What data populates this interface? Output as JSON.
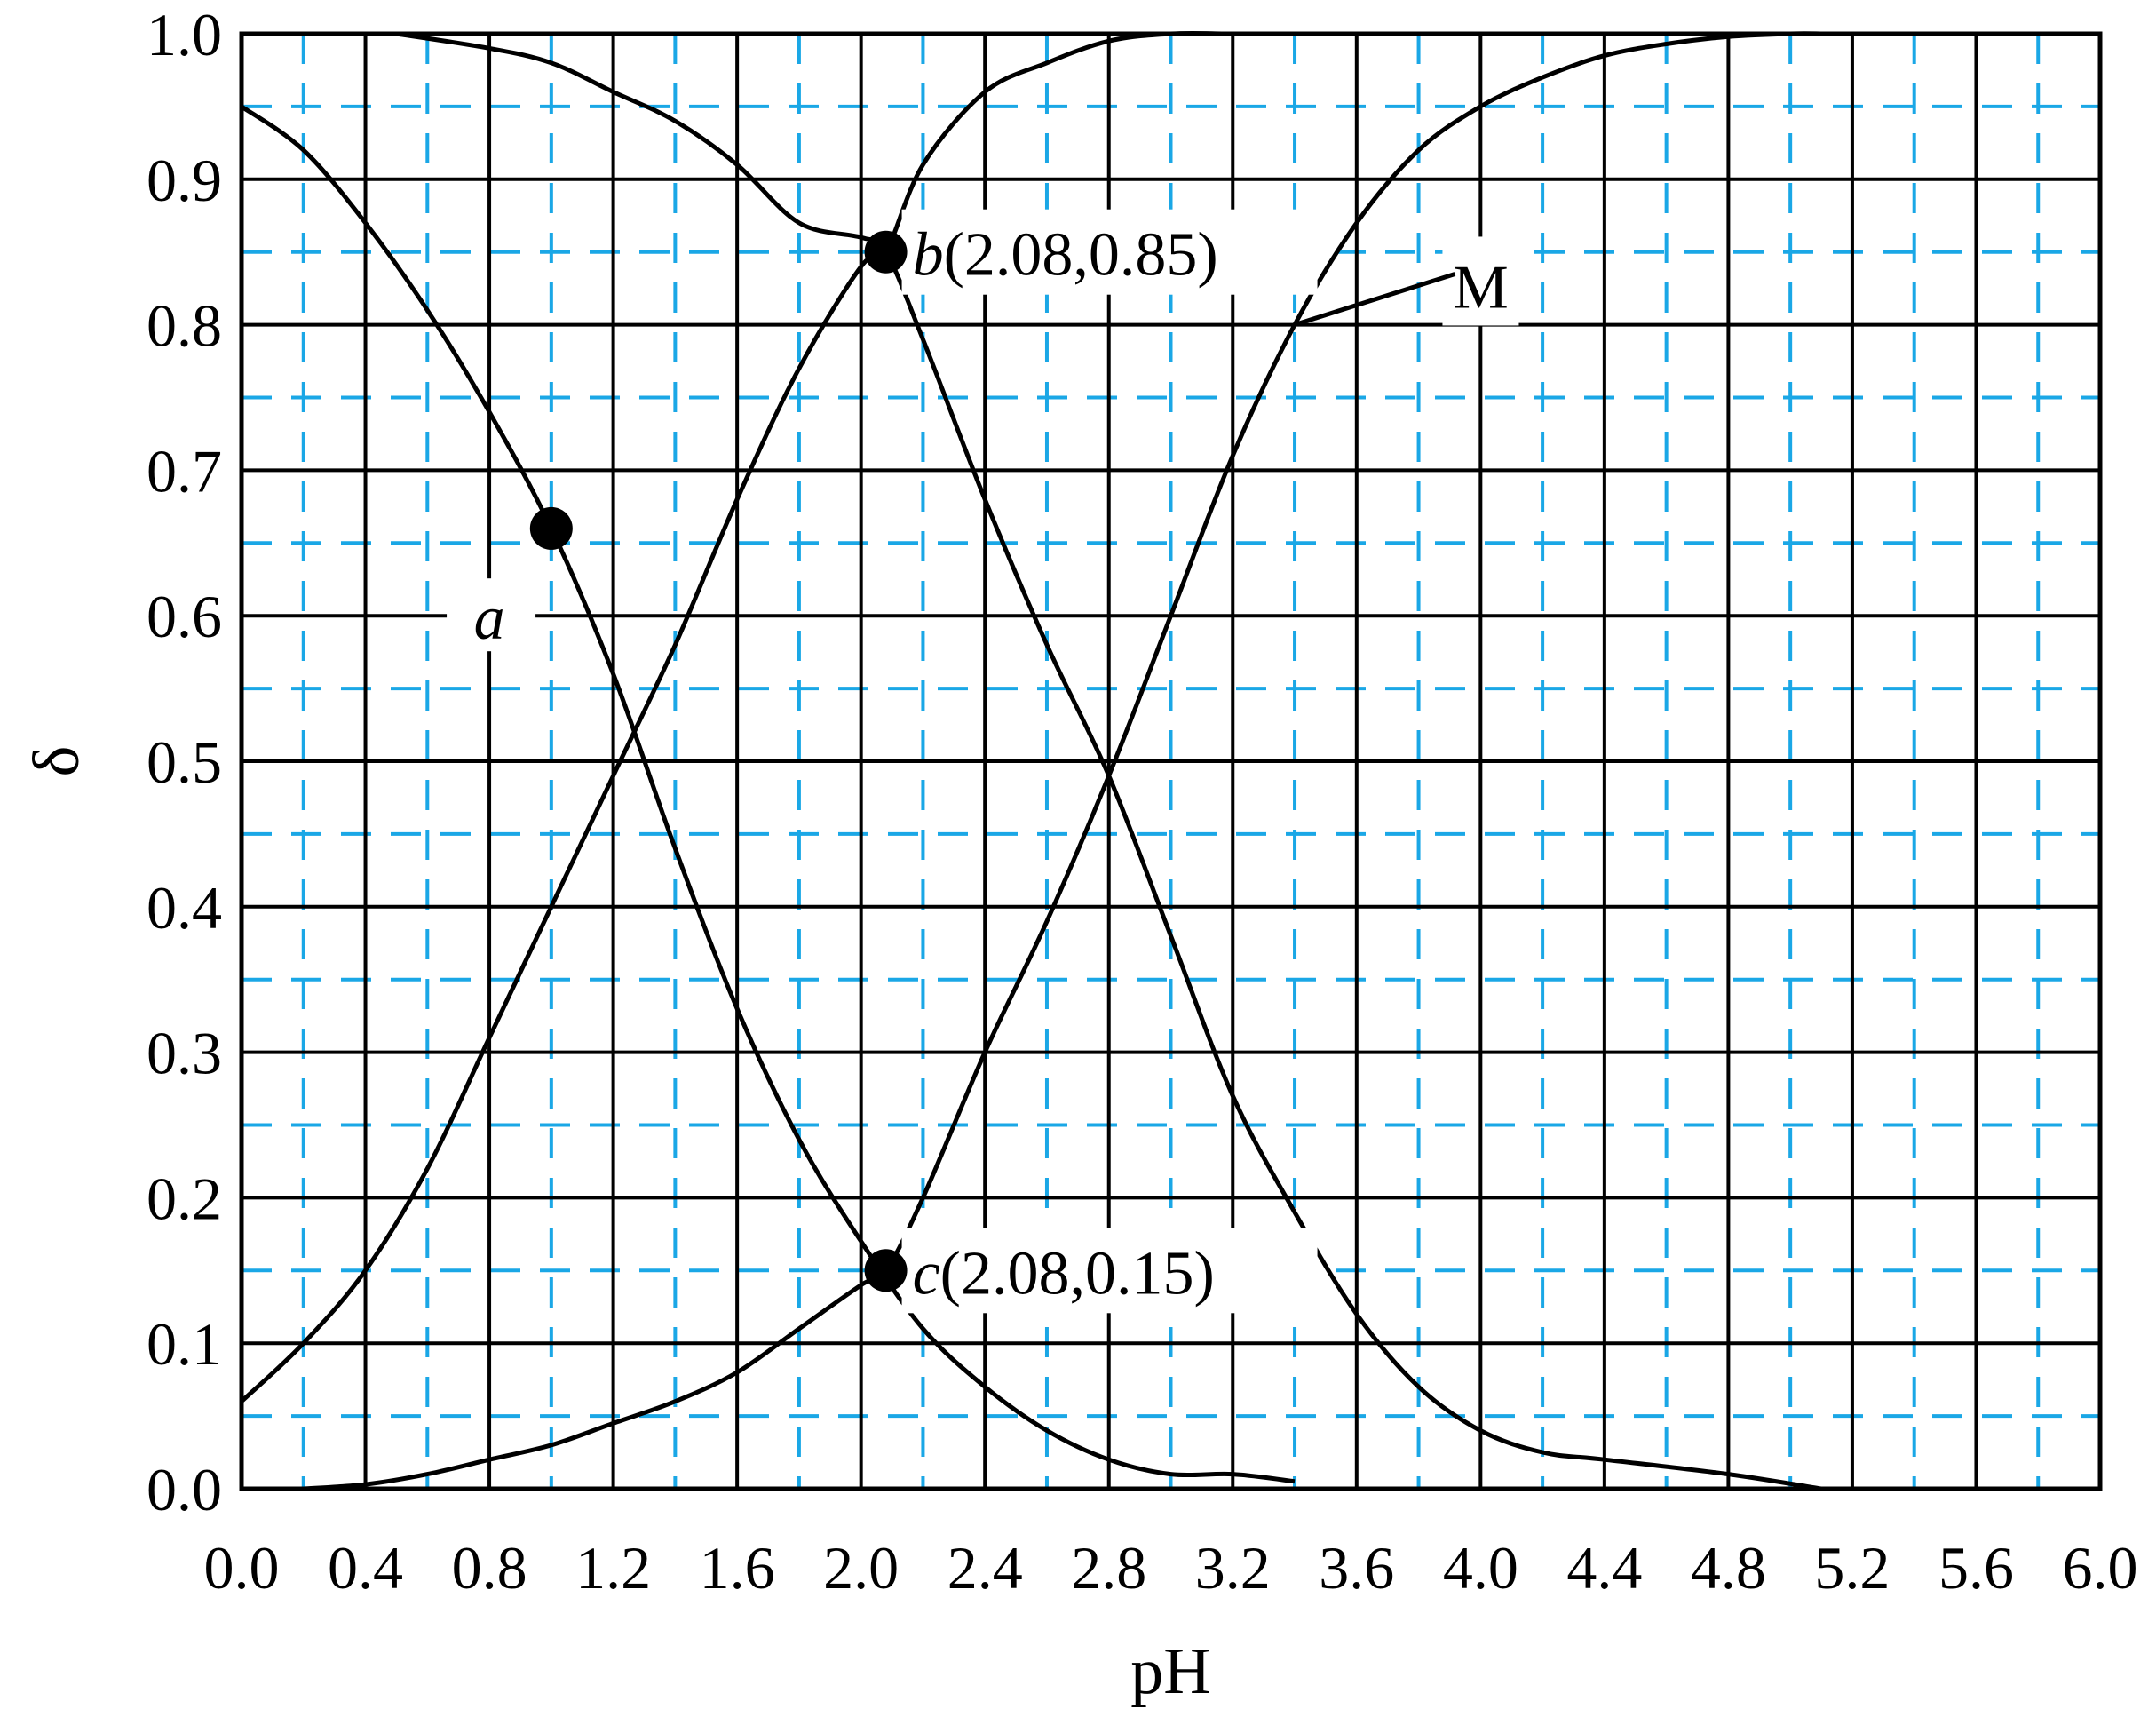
{
  "chart_data": {
    "type": "line",
    "xlabel": "pH",
    "ylabel": "δ",
    "xlim": [
      0.0,
      6.0
    ],
    "ylim": [
      0.0,
      1.0
    ],
    "x_ticks": [
      "0.0",
      "0.4",
      "0.8",
      "1.2",
      "1.6",
      "2.0",
      "2.4",
      "2.8",
      "3.2",
      "3.6",
      "4.0",
      "4.4",
      "4.8",
      "5.2",
      "5.6",
      "6.0"
    ],
    "y_ticks": [
      "0.0",
      "0.1",
      "0.2",
      "0.3",
      "0.4",
      "0.5",
      "0.6",
      "0.7",
      "0.8",
      "0.9",
      "1.0"
    ],
    "grid": {
      "major": {
        "x_step": 0.4,
        "y_step": 0.1,
        "style": "solid",
        "color": "#000000"
      },
      "minor": {
        "x_offset": 0.2,
        "x_step": 0.4,
        "y_offset": 0.05,
        "y_step": 0.1,
        "style": "dashed",
        "color": "#1aa7e6"
      }
    },
    "series": [
      {
        "x": [
          0.0,
          0.2,
          0.4,
          0.6,
          0.8,
          1.0,
          1.2,
          1.4,
          1.6,
          1.8,
          2.0,
          2.2,
          2.4,
          2.6,
          2.8,
          3.0,
          3.2,
          3.4
        ],
        "y": [
          0.95,
          0.92,
          0.87,
          0.81,
          0.74,
          0.66,
          0.56,
          0.44,
          0.33,
          0.24,
          0.17,
          0.11,
          0.07,
          0.04,
          0.02,
          0.01,
          0.01,
          0.005
        ]
      },
      {
        "x": [
          0.5,
          0.8,
          1.0,
          1.2,
          1.4,
          1.6,
          1.8,
          2.0,
          2.08,
          2.2,
          2.4,
          2.6,
          2.8,
          3.0,
          3.2,
          3.4,
          3.6,
          3.8,
          4.0,
          4.2,
          4.4,
          4.8,
          5.1
        ],
        "y": [
          1.0,
          0.99,
          0.98,
          0.96,
          0.94,
          0.91,
          0.87,
          0.86,
          0.85,
          0.79,
          0.68,
          0.58,
          0.49,
          0.38,
          0.27,
          0.19,
          0.12,
          0.07,
          0.04,
          0.025,
          0.02,
          0.01,
          0.0
        ]
      },
      {
        "x": [
          0.0,
          0.2,
          0.4,
          0.6,
          0.8,
          1.0,
          1.2,
          1.4,
          1.6,
          1.8,
          2.0,
          2.08,
          2.2,
          2.4,
          2.6,
          2.8,
          3.0,
          3.2,
          3.4,
          3.6,
          3.8,
          4.0,
          4.2
        ],
        "y": [
          0.06,
          0.1,
          0.15,
          0.22,
          0.31,
          0.4,
          0.49,
          0.58,
          0.68,
          0.77,
          0.84,
          0.85,
          0.91,
          0.96,
          0.98,
          0.995,
          1.0,
          1.0,
          1.0,
          1.0,
          1.0,
          1.0,
          1.0
        ]
      },
      {
        "x": [
          0.2,
          0.4,
          0.6,
          0.8,
          1.0,
          1.2,
          1.4,
          1.6,
          1.8,
          2.0,
          2.08,
          2.2,
          2.4,
          2.6,
          2.8,
          3.0,
          3.2,
          3.4,
          3.6,
          3.8,
          4.0,
          4.2,
          4.4,
          4.6,
          4.8,
          5.0,
          5.1
        ],
        "y": [
          0.0,
          0.003,
          0.01,
          0.02,
          0.03,
          0.045,
          0.06,
          0.08,
          0.11,
          0.14,
          0.15,
          0.2,
          0.3,
          0.39,
          0.49,
          0.6,
          0.71,
          0.8,
          0.87,
          0.92,
          0.95,
          0.97,
          0.985,
          0.993,
          0.998,
          1.0,
          1.0
        ]
      }
    ],
    "points": [
      {
        "name": "a",
        "x": 1.0,
        "y": 0.66,
        "label": "a",
        "label_x": 0.8,
        "label_y": 0.6
      },
      {
        "name": "b",
        "x": 2.08,
        "y": 0.85,
        "letter": "b",
        "coords": "(2.08,0.85)"
      },
      {
        "name": "c",
        "x": 2.08,
        "y": 0.15,
        "letter": "c",
        "coords": "(2.08,0.15)"
      }
    ],
    "annotations": [
      {
        "text": "M",
        "x": 3.9,
        "y": 0.83,
        "pointer_to": {
          "x": 3.4,
          "y": 0.8
        }
      }
    ]
  }
}
